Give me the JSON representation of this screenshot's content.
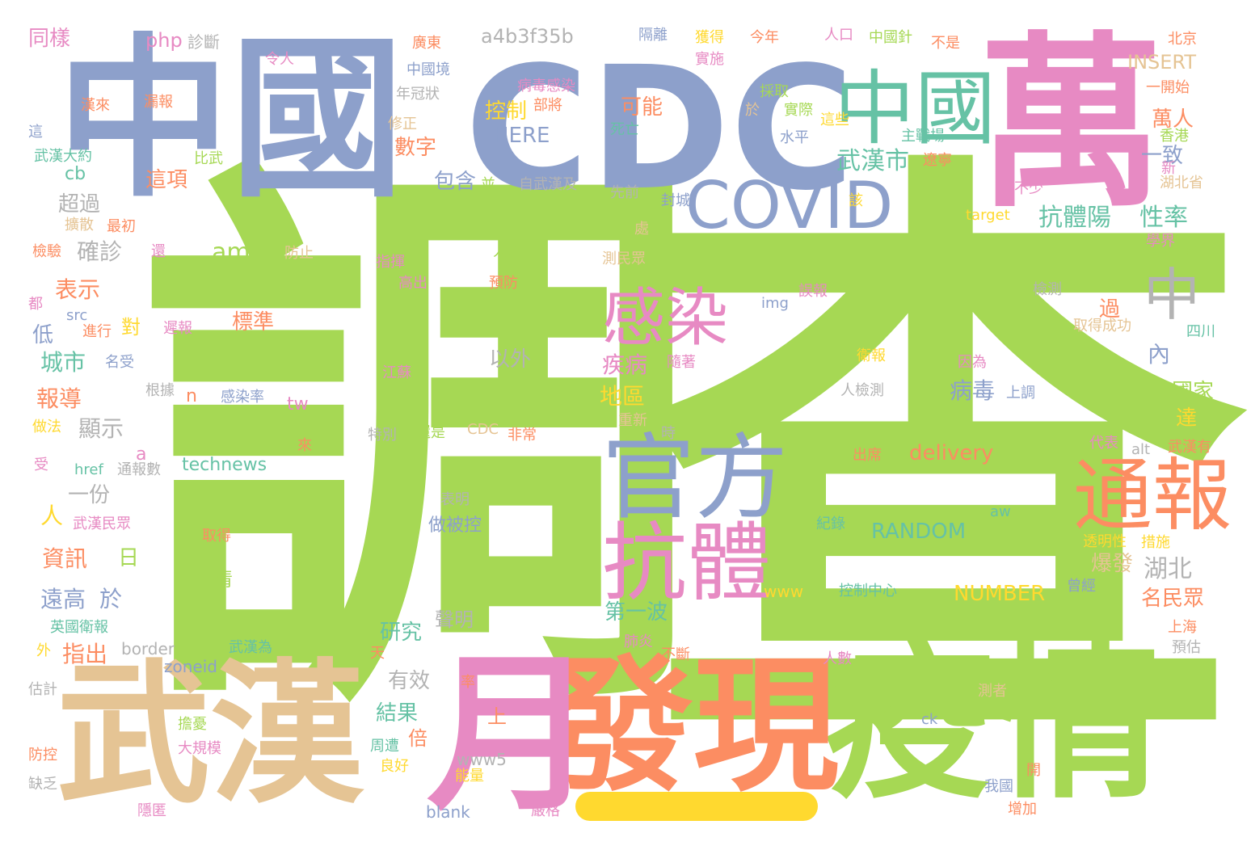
{
  "title": "",
  "palette": {
    "green": "#a6d854",
    "blue": "#8da0cb",
    "orange": "#fc8d62",
    "pink": "#e78ac3",
    "tan": "#e5c494",
    "teal": "#66c2a5",
    "gray": "#b3b3b3",
    "yellow": "#ffd92f"
  },
  "words": [
    {
      "text": "調",
      "color": "green"
    },
    {
      "text": "查",
      "color": "green"
    },
    {
      "text": "萬",
      "color": "pink"
    },
    {
      "text": "CDC",
      "color": "blue"
    },
    {
      "text": "中國",
      "color": "blue"
    },
    {
      "text": "武漢",
      "color": "tan"
    },
    {
      "text": "疫情",
      "color": "green"
    },
    {
      "text": "發現",
      "color": "orange"
    },
    {
      "text": "月",
      "color": "pink"
    },
    {
      "text": "中國",
      "color": "teal"
    },
    {
      "text": "COVID",
      "color": "blue"
    },
    {
      "text": "官方",
      "color": "blue"
    },
    {
      "text": "抗體",
      "color": "pink"
    },
    {
      "text": "感染",
      "color": "pink"
    },
    {
      "text": "通報",
      "color": "orange"
    },
    {
      "text": "中",
      "color": "gray"
    },
    {
      "text": "武漢市",
      "color": "teal"
    },
    {
      "text": "抗體陽",
      "color": "teal"
    },
    {
      "text": "性率",
      "color": "teal"
    },
    {
      "text": "數字",
      "color": "orange"
    },
    {
      "text": "可能",
      "color": "orange"
    },
    {
      "text": "控制",
      "color": "yellow"
    },
    {
      "text": "包含",
      "color": "blue"
    },
    {
      "text": "HERE",
      "color": "blue"
    },
    {
      "text": "a4b3f35b",
      "color": "gray"
    },
    {
      "text": "萬人",
      "color": "orange"
    },
    {
      "text": "一致",
      "color": "blue"
    },
    {
      "text": "INSERT",
      "color": "tan"
    },
    {
      "text": "病毒",
      "color": "blue"
    },
    {
      "text": "疾病",
      "color": "pink"
    },
    {
      "text": "地區",
      "color": "yellow"
    },
    {
      "text": "內",
      "color": "blue"
    },
    {
      "text": "國家",
      "color": "green"
    },
    {
      "text": "達",
      "color": "yellow"
    },
    {
      "text": "湖北",
      "color": "gray"
    },
    {
      "text": "爆發",
      "color": "tan"
    },
    {
      "text": "名民眾",
      "color": "orange"
    },
    {
      "text": "以外",
      "color": "gray"
    },
    {
      "text": "delivery",
      "color": "orange"
    },
    {
      "text": "RANDOM",
      "color": "teal"
    },
    {
      "text": "NUMBER",
      "color": "yellow"
    },
    {
      "text": "做被控",
      "color": "blue"
    },
    {
      "text": "血清",
      "color": "green"
    },
    {
      "text": "第一波",
      "color": "teal"
    },
    {
      "text": "研究",
      "color": "teal"
    },
    {
      "text": "聲明",
      "color": "gray"
    },
    {
      "text": "結果",
      "color": "teal"
    },
    {
      "text": "有效",
      "color": "gray"
    },
    {
      "text": "倍",
      "color": "orange"
    },
    {
      "text": "technews",
      "color": "teal"
    },
    {
      "text": "amp",
      "color": "green"
    },
    {
      "text": "標準",
      "color": "orange"
    },
    {
      "text": "確診",
      "color": "gray"
    },
    {
      "text": "超過",
      "color": "gray"
    },
    {
      "text": "這項",
      "color": "orange"
    },
    {
      "text": "cb",
      "color": "teal"
    },
    {
      "text": "表示",
      "color": "orange"
    },
    {
      "text": "城市",
      "color": "teal"
    },
    {
      "text": "報導",
      "color": "orange"
    },
    {
      "text": "顯示",
      "color": "gray"
    },
    {
      "text": "一份",
      "color": "gray"
    },
    {
      "text": "人",
      "color": "yellow"
    },
    {
      "text": "資訊",
      "color": "orange"
    },
    {
      "text": "日",
      "color": "green"
    },
    {
      "text": "遠高",
      "color": "blue"
    },
    {
      "text": "於",
      "color": "blue"
    },
    {
      "text": "指出",
      "color": "orange"
    },
    {
      "text": "對",
      "color": "yellow"
    },
    {
      "text": "同樣",
      "color": "pink"
    },
    {
      "text": "php",
      "color": "pink"
    },
    {
      "text": "診斷",
      "color": "gray"
    },
    {
      "text": "今年",
      "color": "orange"
    },
    {
      "text": "人口",
      "color": "pink"
    },
    {
      "text": "中國針",
      "color": "green"
    },
    {
      "text": "不是",
      "color": "orange"
    },
    {
      "text": "北京",
      "color": "orange"
    },
    {
      "text": "隔離",
      "color": "blue"
    },
    {
      "text": "獲得",
      "color": "yellow"
    },
    {
      "text": "實施",
      "color": "pink"
    },
    {
      "text": "廣東",
      "color": "orange"
    },
    {
      "text": "令人",
      "color": "pink"
    },
    {
      "text": "中國境",
      "color": "blue"
    },
    {
      "text": "年冠狀",
      "color": "gray"
    },
    {
      "text": "病毒感染",
      "color": "pink"
    },
    {
      "text": "部將",
      "color": "orange"
    },
    {
      "text": "漢來",
      "color": "orange"
    },
    {
      "text": "漏報",
      "color": "orange"
    },
    {
      "text": "一開始",
      "color": "orange"
    },
    {
      "text": "香港",
      "color": "green"
    },
    {
      "text": "新",
      "color": "pink"
    },
    {
      "text": "湖北省",
      "color": "tan"
    },
    {
      "text": "不少",
      "color": "pink"
    },
    {
      "text": "採取",
      "color": "green"
    },
    {
      "text": "實際",
      "color": "green"
    },
    {
      "text": "水平",
      "color": "blue"
    },
    {
      "text": "死亡",
      "color": "teal"
    },
    {
      "text": "修正",
      "color": "tan"
    },
    {
      "text": "主戰場",
      "color": "teal"
    },
    {
      "text": "遼寧",
      "color": "orange"
    },
    {
      "text": "這些",
      "color": "yellow"
    },
    {
      "text": "於",
      "color": "tan"
    },
    {
      "text": "武漢大約",
      "color": "teal"
    },
    {
      "text": "比武",
      "color": "green"
    },
    {
      "text": "並",
      "color": "green"
    },
    {
      "text": "自武漢及",
      "color": "gray"
    },
    {
      "text": "先前",
      "color": "gray"
    },
    {
      "text": "封城",
      "color": "blue"
    },
    {
      "text": "該",
      "color": "yellow"
    },
    {
      "text": "target",
      "color": "yellow"
    },
    {
      "text": "學界",
      "color": "pink"
    },
    {
      "text": "將近",
      "color": "green"
    },
    {
      "text": "擴散",
      "color": "tan"
    },
    {
      "text": "最初",
      "color": "orange"
    },
    {
      "text": "檢驗",
      "color": "orange"
    },
    {
      "text": "還",
      "color": "pink"
    },
    {
      "text": "防止",
      "color": "tan"
    },
    {
      "text": "指揮",
      "color": "pink"
    },
    {
      "text": "人群",
      "color": "green"
    },
    {
      "text": "處",
      "color": "tan"
    },
    {
      "text": "測民眾",
      "color": "tan"
    },
    {
      "text": "誤報",
      "color": "pink"
    },
    {
      "text": "檢測",
      "color": "gray"
    },
    {
      "text": "高出",
      "color": "pink"
    },
    {
      "text": "預防",
      "color": "orange"
    },
    {
      "text": "img",
      "color": "blue"
    },
    {
      "text": "過",
      "color": "orange"
    },
    {
      "text": "取得成功",
      "color": "tan"
    },
    {
      "text": "四川",
      "color": "teal"
    },
    {
      "text": "都",
      "color": "pink"
    },
    {
      "text": "src",
      "color": "blue"
    },
    {
      "text": "進行",
      "color": "orange"
    },
    {
      "text": "遲報",
      "color": "pink"
    },
    {
      "text": "低",
      "color": "blue"
    },
    {
      "text": "衛報",
      "color": "yellow"
    },
    {
      "text": "因為",
      "color": "pink"
    },
    {
      "text": "名受",
      "color": "blue"
    },
    {
      "text": "隨著",
      "color": "pink"
    },
    {
      "text": "江蘇",
      "color": "pink"
    },
    {
      "text": "根據",
      "color": "gray"
    },
    {
      "text": "n",
      "color": "orange"
    },
    {
      "text": "感染率",
      "color": "blue"
    },
    {
      "text": "人檢測",
      "color": "gray"
    },
    {
      "text": "上調",
      "color": "blue"
    },
    {
      "text": "tw",
      "color": "pink"
    },
    {
      "text": "做法",
      "color": "yellow"
    },
    {
      "text": "重新",
      "color": "tan"
    },
    {
      "text": "來",
      "color": "orange"
    },
    {
      "text": "特別",
      "color": "gray"
    },
    {
      "text": "還是",
      "color": "green"
    },
    {
      "text": "CDC",
      "color": "tan"
    },
    {
      "text": "非常",
      "color": "orange"
    },
    {
      "text": "時",
      "color": "gray"
    },
    {
      "text": "代表",
      "color": "pink"
    },
    {
      "text": "alt",
      "color": "gray"
    },
    {
      "text": "武漢有",
      "color": "orange"
    },
    {
      "text": "a",
      "color": "pink"
    },
    {
      "text": "受",
      "color": "pink"
    },
    {
      "text": "href",
      "color": "teal"
    },
    {
      "text": "通報數",
      "color": "gray"
    },
    {
      "text": "出席",
      "color": "orange"
    },
    {
      "text": "表明",
      "color": "gray"
    },
    {
      "text": "www",
      "color": "yellow"
    },
    {
      "text": "控制中心",
      "color": "teal"
    },
    {
      "text": "曾經",
      "color": "blue"
    },
    {
      "text": "aw",
      "color": "teal"
    },
    {
      "text": "紀錄",
      "color": "teal"
    },
    {
      "text": "透明性",
      "color": "yellow"
    },
    {
      "text": "措施",
      "color": "yellow"
    },
    {
      "text": "武漢民眾",
      "color": "pink"
    },
    {
      "text": "取得",
      "color": "orange"
    },
    {
      "text": "英國衛報",
      "color": "teal"
    },
    {
      "text": "外",
      "color": "yellow"
    },
    {
      "text": "border",
      "color": "gray"
    },
    {
      "text": "武漢為",
      "color": "teal"
    },
    {
      "text": "肺炎",
      "color": "pink"
    },
    {
      "text": "不斷",
      "color": "orange"
    },
    {
      "text": "上海",
      "color": "orange"
    },
    {
      "text": "預估",
      "color": "gray"
    },
    {
      "text": "天",
      "color": "orange"
    },
    {
      "text": "zoneid",
      "color": "blue"
    },
    {
      "text": "人數",
      "color": "pink"
    },
    {
      "text": "估計",
      "color": "gray"
    },
    {
      "text": "率",
      "color": "orange"
    },
    {
      "text": "測者",
      "color": "tan"
    },
    {
      "text": "上",
      "color": "orange"
    },
    {
      "text": "ck",
      "color": "blue"
    },
    {
      "text": "擔憂",
      "color": "green"
    },
    {
      "text": "周遭",
      "color": "teal"
    },
    {
      "text": "大規模",
      "color": "pink"
    },
    {
      "text": "www5",
      "color": "gray"
    },
    {
      "text": "防控",
      "color": "orange"
    },
    {
      "text": "良好",
      "color": "yellow"
    },
    {
      "text": "能量",
      "color": "yellow"
    },
    {
      "text": "開",
      "color": "orange"
    },
    {
      "text": "缺乏",
      "color": "gray"
    },
    {
      "text": "我國",
      "color": "blue"
    },
    {
      "text": "blank",
      "color": "blue"
    },
    {
      "text": "嚴格",
      "color": "pink"
    },
    {
      "text": "增加",
      "color": "orange"
    },
    {
      "text": "隱匿",
      "color": "pink"
    },
    {
      "text": "這",
      "color": "blue"
    }
  ]
}
